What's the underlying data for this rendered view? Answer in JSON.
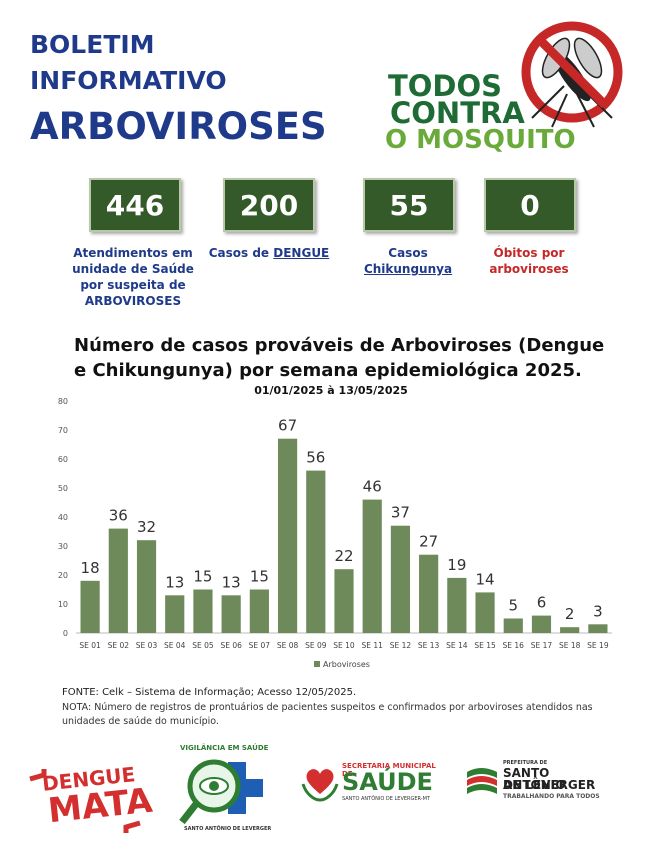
{
  "header": {
    "title_line1": "BOLETIM",
    "title_line2": "INFORMATIVO",
    "title_line3": "ARBOVIROSES",
    "campaign_line1": "TODOS",
    "campaign_line2": "CONTRA",
    "campaign_line3": "O MOSQUITO"
  },
  "stats": [
    {
      "value": "446",
      "label_lines": [
        "Atendimentos em",
        "unidade de Saúde",
        "por suspeita de",
        "ARBOVIROSES"
      ]
    },
    {
      "value": "200",
      "label_prefix": "Casos de ",
      "label_underlined": "DENGUE"
    },
    {
      "value": "55",
      "label_line1": "Casos",
      "label_underlined": "Chikungunya"
    },
    {
      "value": "0",
      "label_lines": [
        "Óbitos por",
        "arboviroses"
      ]
    }
  ],
  "chart_data": {
    "type": "bar",
    "title_line1": "Número de casos prováveis de Arboviroses (Dengue",
    "title_line2": "e Chikungunya) por semana epidemiológica 2025.",
    "subtitle": "01/01/2025 à 13/05/2025",
    "categories": [
      "SE 01",
      "SE 02",
      "SE 03",
      "SE 04",
      "SE 05",
      "SE 06",
      "SE 07",
      "SE 08",
      "SE 09",
      "SE 10",
      "SE 11",
      "SE 12",
      "SE 13",
      "SE 14",
      "SE 15",
      "SE 16",
      "SE 17",
      "SE 18",
      "SE 19"
    ],
    "series": [
      {
        "name": "Arboviroses",
        "values": [
          18,
          36,
          32,
          13,
          15,
          13,
          15,
          67,
          56,
          22,
          46,
          37,
          27,
          19,
          14,
          5,
          6,
          2,
          3
        ]
      }
    ],
    "ylim": [
      0,
      80
    ],
    "yticks": [
      0,
      10,
      20,
      30,
      40,
      50,
      60,
      70,
      80
    ],
    "legend_position": "bottom",
    "bar_color": "#6e8a5a",
    "grid": false
  },
  "footer": {
    "source": "FONTE: Celk – Sistema de Informação; Acesso 12/05/2025.",
    "note": "NOTA: Número de registros de prontuários de pacientes suspeitos e confirmados por arboviroses atendidos nas unidades de saúde do município."
  },
  "logos": {
    "dengue_mata_line1": "DENGUE",
    "dengue_mata_line2": "MATA",
    "vigilancia": "VIGILÂNCIA EM SAÚDE",
    "vigilancia_sub": "SANTO ANTÔNIO DE LEVERGER",
    "secretaria_label": "SECRETARIA MUNICIPAL DE",
    "saude": "SAÚDE",
    "saude_sub": "SANTO ANTÔNIO DE LEVERGER-MT",
    "prefeitura_label": "PREFEITURA DE",
    "prefeitura_name1": "SANTO ANTÔNIO",
    "prefeitura_name2": "DE LEVERGER",
    "prefeitura_slogan": "TRABALHANDO PARA TODOS"
  },
  "icons": {
    "mosquito": "no-mosquito-icon",
    "heart": "heart-hands-icon",
    "magnifier": "magnifier-cross-icon",
    "flag": "flag-stripes-icon"
  }
}
